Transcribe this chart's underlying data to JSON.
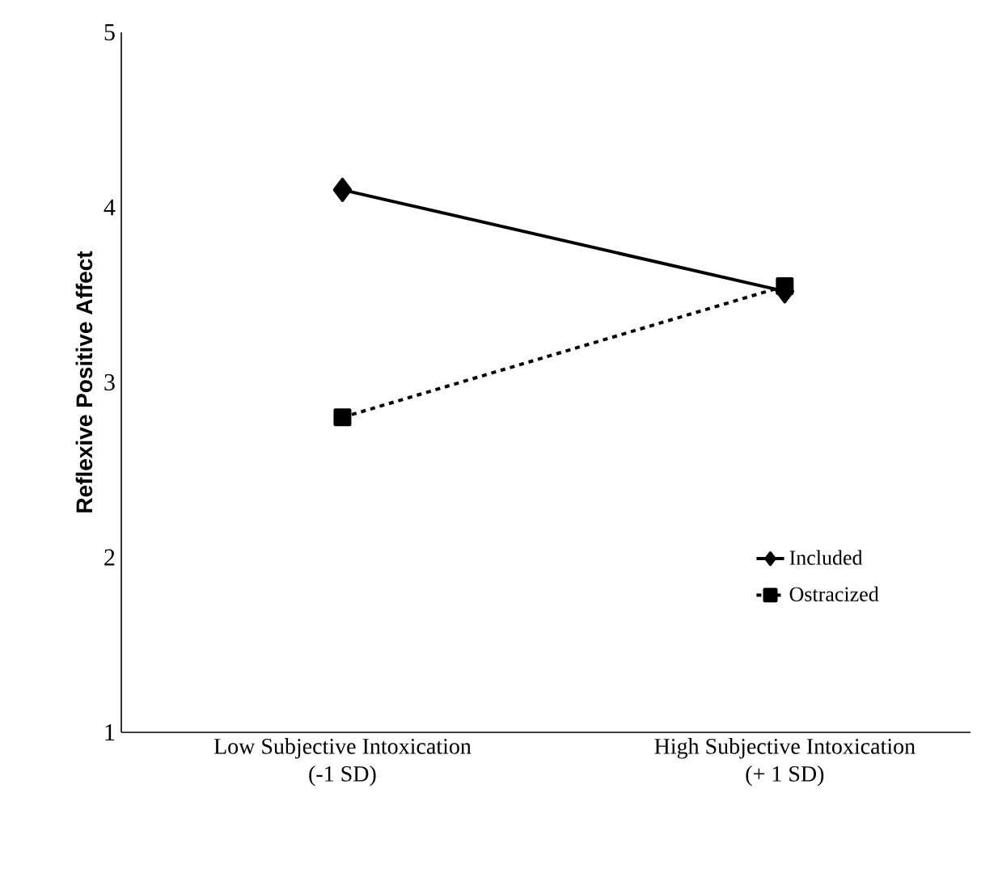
{
  "chart_data": {
    "type": "line",
    "ylabel": "Reflexive Positive Affect",
    "categories": [
      "Low Subjective Intoxication\n(-1 SD)",
      "High Subjective Intoxication\n(+ 1 SD)"
    ],
    "ylim": [
      1,
      5
    ],
    "yticks": [
      1,
      2,
      3,
      4,
      5
    ],
    "legend": "bottom right",
    "grid": false,
    "series": [
      {
        "name": "Included",
        "color": "#000000",
        "values": [
          4.1,
          3.52
        ],
        "marker": "diamond",
        "line_style": "solid"
      },
      {
        "name": "Ostracized",
        "color": "#000000",
        "values": [
          2.8,
          3.55
        ],
        "marker": "square",
        "line_style": "dashed"
      }
    ]
  }
}
